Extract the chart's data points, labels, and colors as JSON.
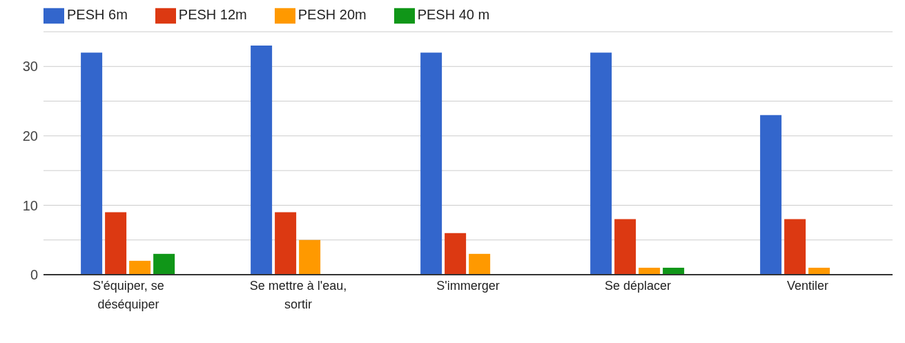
{
  "chart_data": {
    "type": "bar",
    "categories": [
      "S'équiper, se déséquiper",
      "Se mettre à l'eau, sortir",
      "S'immerger",
      "Se déplacer",
      "Ventiler"
    ],
    "series": [
      {
        "name": "PESH 6m",
        "color": "#3366cc",
        "values": [
          32,
          33,
          32,
          32,
          23
        ]
      },
      {
        "name": "PESH 12m",
        "color": "#dc3912",
        "values": [
          9,
          9,
          6,
          8,
          8
        ]
      },
      {
        "name": "PESH 20m",
        "color": "#ff9900",
        "values": [
          2,
          5,
          3,
          1,
          1
        ]
      },
      {
        "name": "PESH 40 m",
        "color": "#109618",
        "values": [
          3,
          null,
          null,
          1,
          null
        ]
      }
    ],
    "ylim": [
      0,
      35
    ],
    "yticks": [
      0,
      {
        "value": 5,
        "label": null
      },
      10,
      {
        "value": 15,
        "label": null
      },
      20,
      {
        "value": 25,
        "label": null
      },
      30,
      {
        "value": 35,
        "label": null
      }
    ],
    "grid": "y",
    "legend": "top left"
  }
}
